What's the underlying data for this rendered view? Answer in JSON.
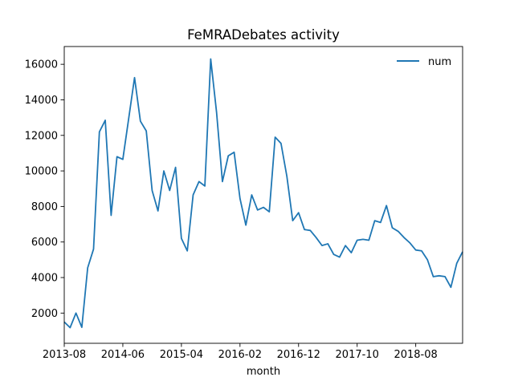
{
  "chart_data": {
    "type": "line",
    "title": "FeMRADebates activity",
    "xlabel": "month",
    "ylabel": "",
    "x_start": "2013-08",
    "x_ticks": [
      "2013-08",
      "2014-06",
      "2015-04",
      "2016-02",
      "2016-12",
      "2017-10",
      "2018-08"
    ],
    "y_ticks": [
      2000,
      4000,
      6000,
      8000,
      10000,
      12000,
      14000,
      16000
    ],
    "ylim": [
      300,
      17000
    ],
    "grid": false,
    "legend": {
      "position": "top-right",
      "entries": [
        "num"
      ]
    },
    "colors": {
      "series": "#1f77b4"
    },
    "series": [
      {
        "name": "num",
        "x": [
          "2013-08",
          "2013-09",
          "2013-10",
          "2013-11",
          "2013-12",
          "2014-01",
          "2014-02",
          "2014-03",
          "2014-04",
          "2014-05",
          "2014-06",
          "2014-07",
          "2014-08",
          "2014-09",
          "2014-10",
          "2014-11",
          "2014-12",
          "2015-01",
          "2015-02",
          "2015-03",
          "2015-04",
          "2015-05",
          "2015-06",
          "2015-07",
          "2015-08",
          "2015-09",
          "2015-10",
          "2015-11",
          "2015-12",
          "2016-01",
          "2016-02",
          "2016-03",
          "2016-04",
          "2016-05",
          "2016-06",
          "2016-07",
          "2016-08",
          "2016-09",
          "2016-10",
          "2016-11",
          "2016-12",
          "2017-01",
          "2017-02",
          "2017-03",
          "2017-04",
          "2017-05",
          "2017-06",
          "2017-07",
          "2017-08",
          "2017-09",
          "2017-10",
          "2017-11",
          "2017-12",
          "2018-01",
          "2018-02",
          "2018-03",
          "2018-04",
          "2018-05",
          "2018-06",
          "2018-07",
          "2018-08",
          "2018-09",
          "2018-10",
          "2018-11",
          "2018-12",
          "2019-01",
          "2019-02",
          "2019-03",
          "2019-04"
        ],
        "values": [
          1500,
          1180,
          2000,
          1200,
          4550,
          5600,
          12200,
          12850,
          7500,
          10800,
          10650,
          12950,
          15250,
          12800,
          12250,
          8900,
          7750,
          10000,
          8900,
          10200,
          6200,
          5500,
          8650,
          9400,
          9150,
          16300,
          13300,
          9400,
          10850,
          11050,
          8450,
          6950,
          8650,
          7800,
          7950,
          7700,
          11900,
          11550,
          9700,
          7200,
          7650,
          6700,
          6650,
          6250,
          5800,
          5900,
          5300,
          5150,
          5800,
          5400,
          6100,
          6150,
          6100,
          7200,
          7100,
          8050,
          6800,
          6600,
          6250,
          5950,
          5550,
          5500,
          5000,
          4050,
          4100,
          4050,
          3450,
          4800,
          5450
        ]
      }
    ]
  }
}
